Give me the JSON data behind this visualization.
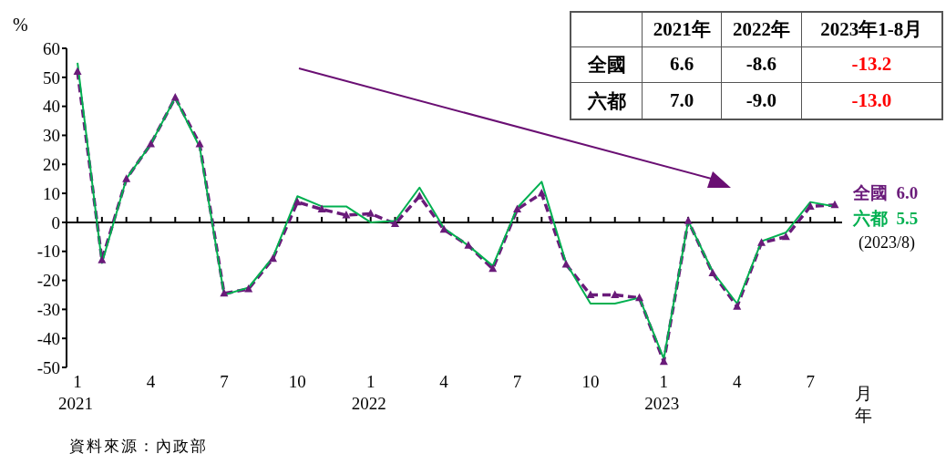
{
  "chart_data": {
    "type": "line",
    "ylabel": "%",
    "xlabel": "月年",
    "categories": [
      "1\n2021",
      null,
      null,
      "4",
      null,
      null,
      "7",
      null,
      null,
      "10",
      null,
      null,
      "1\n2022",
      null,
      null,
      "4",
      null,
      null,
      "7",
      null,
      null,
      "10",
      null,
      null,
      "1\n2023",
      null,
      null,
      "4",
      null,
      null,
      "7",
      null
    ],
    "series": [
      {
        "name": "全國",
        "color": "#6a1b7a",
        "marker": "triangle",
        "line_style": "dashed",
        "values": [
          52,
          -13,
          15,
          27,
          43,
          27,
          -24.5,
          -23,
          -12.5,
          7,
          4.5,
          2.5,
          3,
          -0.5,
          9,
          -2.5,
          -8,
          -16,
          4.5,
          10,
          -14.5,
          -25,
          -25,
          -26,
          -48,
          0.5,
          -17.5,
          -29,
          -7,
          -5,
          5.5,
          6.0
        ]
      },
      {
        "name": "六都",
        "color": "#00b050",
        "marker": "none",
        "line_style": "solid",
        "values": [
          55,
          -14,
          15,
          27,
          43,
          26,
          -25,
          -22.5,
          -12,
          9,
          5.5,
          5.5,
          0,
          0.5,
          12,
          -2,
          -8,
          -15,
          5,
          14,
          -14,
          -28,
          -28,
          -26,
          -47,
          0.5,
          -17,
          -28,
          -6.5,
          -3.5,
          7,
          5.5
        ]
      }
    ],
    "ylim": [
      -50,
      60
    ],
    "yticks": [
      -50,
      -40,
      -30,
      -20,
      -10,
      0,
      10,
      20,
      30,
      40,
      50,
      60
    ],
    "legend": false,
    "annotations": [
      "2021年",
      "2022年",
      "2023年1-8月",
      "全國",
      "6.6",
      "-8.6",
      "-13.2",
      "六都",
      "7.0",
      "-9.0",
      "-13.0",
      "(2023/8)",
      "資料來源：內政部",
      "6.0",
      "5.5"
    ]
  }
}
